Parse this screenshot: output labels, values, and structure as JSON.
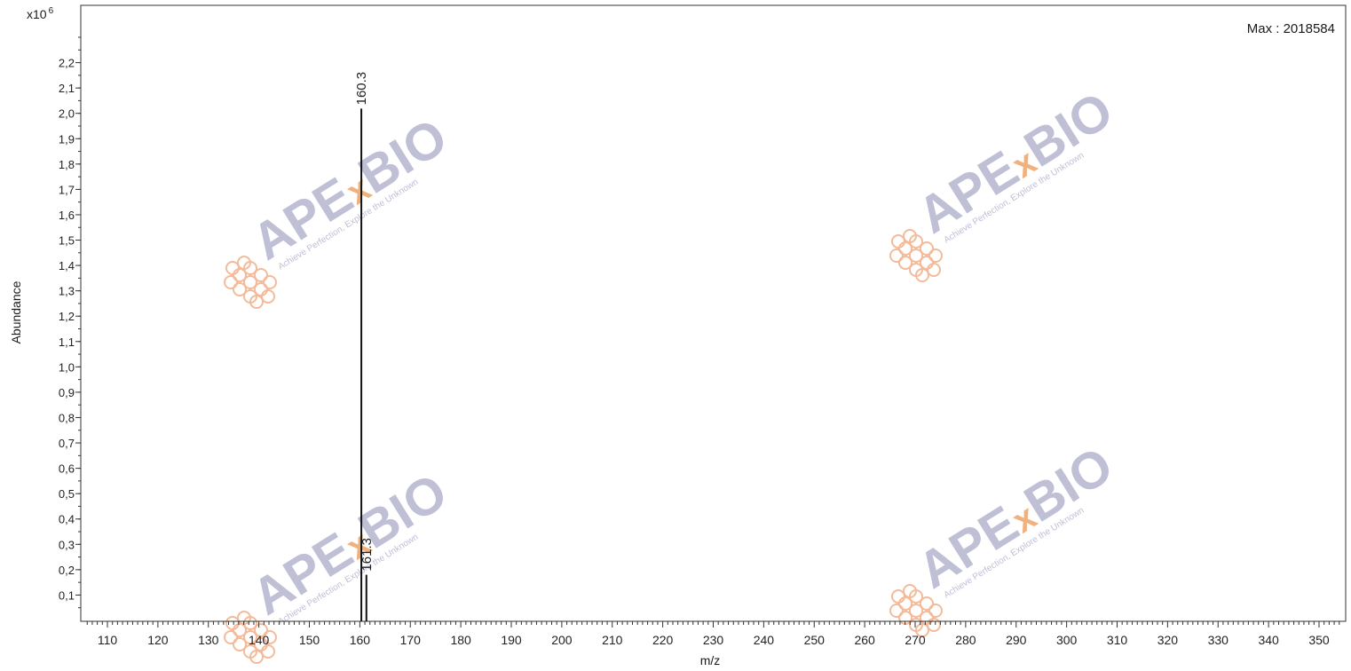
{
  "chart_data": {
    "type": "bar",
    "xlabel": "m/z",
    "ylabel": "Abundance",
    "y_multiplier": "x10",
    "y_exponent": "6",
    "max_label": "Max : 2018584",
    "xlim": [
      106,
      354
    ],
    "ylim": [
      0,
      2.4
    ],
    "x_ticks": [
      110,
      120,
      130,
      140,
      150,
      160,
      170,
      180,
      190,
      200,
      210,
      220,
      230,
      240,
      250,
      260,
      270,
      280,
      290,
      300,
      310,
      320,
      330,
      340,
      350
    ],
    "y_ticks": [
      "0,1",
      "0,2",
      "0,3",
      "0,4",
      "0,5",
      "0,6",
      "0,7",
      "0,8",
      "0,9",
      "1,0",
      "1,1",
      "1,2",
      "1,3",
      "1,4",
      "1,5",
      "1,6",
      "1,7",
      "1,8",
      "1,9",
      "2,0",
      "2,1",
      "2,2"
    ],
    "y_tick_values": [
      0.1,
      0.2,
      0.3,
      0.4,
      0.5,
      0.6,
      0.7,
      0.8,
      0.9,
      1.0,
      1.1,
      1.2,
      1.3,
      1.4,
      1.5,
      1.6,
      1.7,
      1.8,
      1.9,
      2.0,
      2.1,
      2.2
    ],
    "grid": false,
    "peaks": [
      {
        "mz": 160.3,
        "abundance": 2.018584,
        "label": "160.3"
      },
      {
        "mz": 161.3,
        "abundance": 0.18,
        "label": "161.3"
      }
    ]
  },
  "watermark": {
    "brand": "APE",
    "brand_x": "x",
    "brand_bio": "BIO",
    "tagline": "Achieve Perfection, Explore the Unknown",
    "logo_color": "#f2b48f",
    "text_color": "#b9b9d2",
    "accent_color": "#f0a96e"
  }
}
